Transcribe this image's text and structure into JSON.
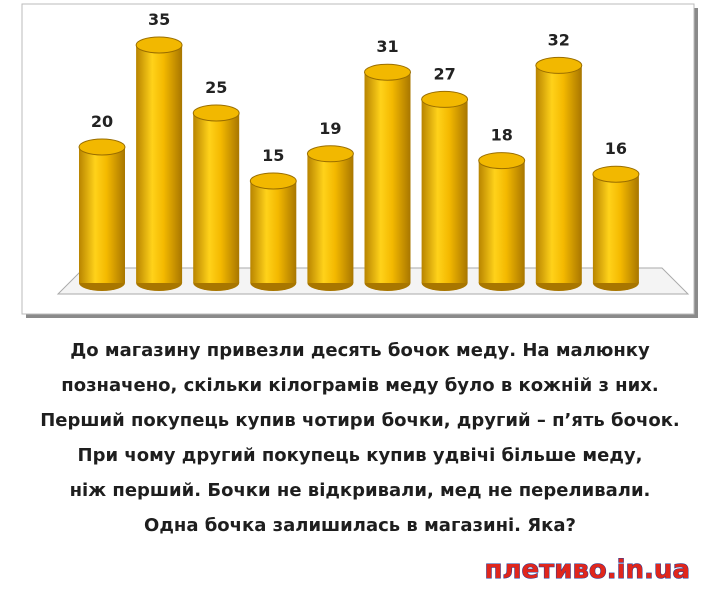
{
  "chart_data": {
    "type": "cylinder-bar",
    "values": [
      20,
      35,
      25,
      15,
      19,
      31,
      27,
      18,
      32,
      16
    ],
    "color": "#f2b800"
  },
  "puzzle": {
    "lines": [
      "До магазину привезли десять бочок меду.  На малюнку",
      "позначено, скільки кілограмів меду було в кожній з них.",
      "Перший покупець купив чотири бочки, другий – п’ять бочок.",
      "При чому другий покупець купив удвічі більше меду,",
      "ніж перший. Бочки не відкривали, мед не переливали.",
      "Одна бочка залишилась в магазині. Яка?"
    ]
  },
  "logo": {
    "text": "плетиво.in.ua"
  }
}
